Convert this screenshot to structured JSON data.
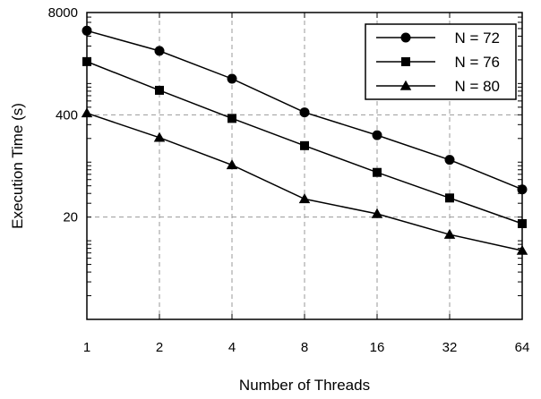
{
  "chart_data": {
    "type": "line",
    "title": "",
    "xlabel": "Number of Threads",
    "ylabel": "Execution Time (s)",
    "x": [
      1,
      2,
      4,
      8,
      16,
      32,
      64
    ],
    "x_scale": "log2",
    "y_scale": "log",
    "ylim": [
      1,
      8000
    ],
    "yticks": [
      20,
      400,
      8000
    ],
    "grid": true,
    "legend_position": "top-right",
    "series": [
      {
        "name": "N = 72",
        "marker": "circle",
        "values": [
          4700,
          2600,
          1150,
          430,
          220,
          107,
          45
        ]
      },
      {
        "name": "N = 76",
        "marker": "square",
        "values": [
          1900,
          820,
          360,
          162,
          74,
          35,
          16.5
        ]
      },
      {
        "name": "N = 80",
        "marker": "triangle",
        "values": [
          420,
          205,
          92,
          34,
          22,
          12,
          7.5
        ]
      }
    ]
  }
}
